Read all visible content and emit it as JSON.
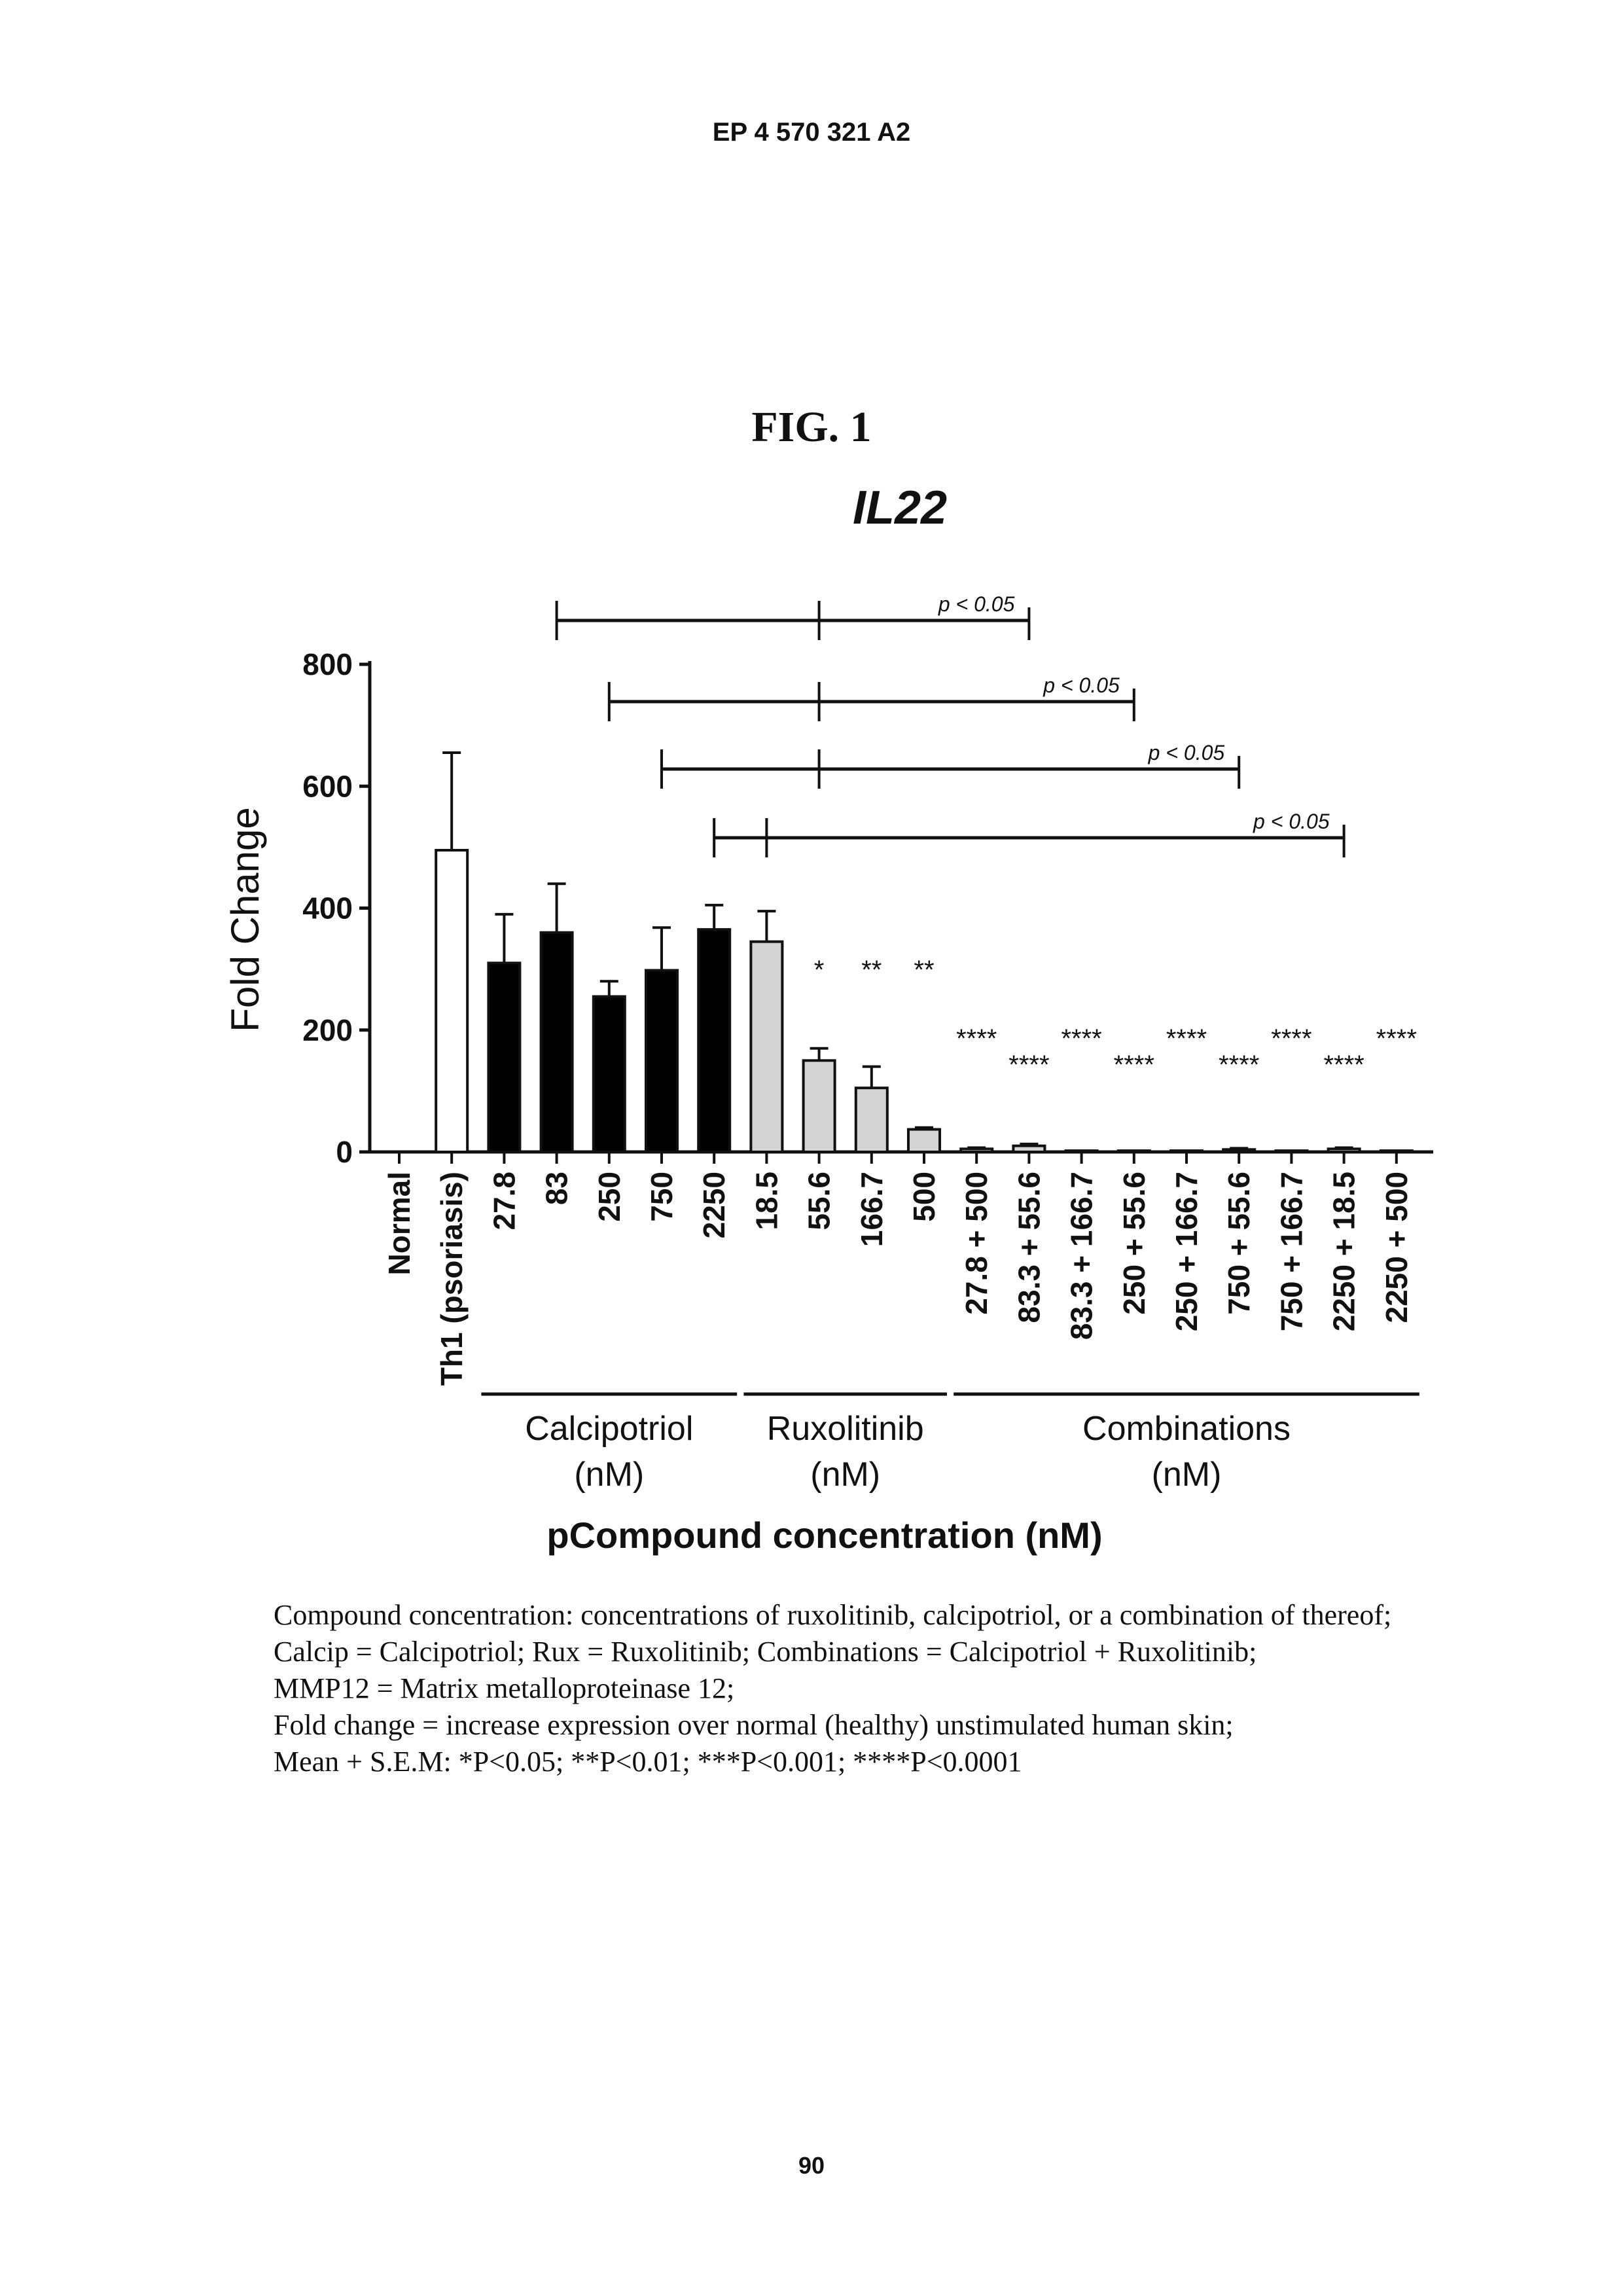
{
  "header": {
    "doc_number": "EP 4 570 321 A2"
  },
  "figure": {
    "label": "FIG. 1"
  },
  "chart_data": {
    "type": "bar",
    "title": "IL22",
    "ylabel": "Fold Change",
    "xlabel": "pCompound concentration (nM)",
    "ylim": [
      0,
      800
    ],
    "yticks": [
      0,
      200,
      400,
      600,
      800
    ],
    "grid": false,
    "categories": [
      "Normal",
      "Th1 (psoriasis)",
      "27.8",
      "83",
      "250",
      "750",
      "2250",
      "18.5",
      "55.6",
      "166.7",
      "500",
      "27.8 + 500",
      "83.3 + 55.6",
      "83.3 + 166.7",
      "250 + 55.6",
      "250 + 166.7",
      "750 + 55.6",
      "750 + 166.7",
      "2250 + 18.5",
      "2250 + 500"
    ],
    "values": [
      0,
      495,
      310,
      360,
      255,
      298,
      365,
      345,
      150,
      105,
      37,
      5,
      10,
      2,
      2,
      2,
      4,
      2,
      5,
      2
    ],
    "errors": [
      0,
      160,
      80,
      80,
      25,
      70,
      40,
      50,
      20,
      35,
      3,
      2,
      3,
      0,
      0,
      0,
      2,
      0,
      2,
      0
    ],
    "groups": [
      "control",
      "control",
      "calcipotriol",
      "calcipotriol",
      "calcipotriol",
      "calcipotriol",
      "calcipotriol",
      "ruxolitinib",
      "ruxolitinib",
      "ruxolitinib",
      "ruxolitinib",
      "combination",
      "combination",
      "combination",
      "combination",
      "combination",
      "combination",
      "combination",
      "combination",
      "combination"
    ],
    "fills": {
      "control": "#ffffff",
      "calcipotriol": "#000000",
      "ruxolitinib": "#d4d4d4",
      "combination": "#d4d4d4"
    },
    "significance": [
      "",
      "",
      "",
      "",
      "",
      "",
      "",
      "",
      "*",
      "**",
      "**",
      "****",
      "****",
      "****",
      "****",
      "****",
      "****",
      "****",
      "****",
      "****"
    ],
    "group_labels": [
      {
        "name": "Calcipotriol",
        "unit": "(nM)"
      },
      {
        "name": "Ruxolitinib",
        "unit": "(nM)"
      },
      {
        "name": "Combinations",
        "unit": "(nM)"
      }
    ],
    "comparisons": [
      {
        "label": "p < 0.05",
        "points": [
          3,
          8,
          12
        ]
      },
      {
        "label": "p < 0.05",
        "points": [
          4,
          8,
          14
        ]
      },
      {
        "label": "p < 0.05",
        "points": [
          5,
          8,
          16
        ]
      },
      {
        "label": "p < 0.05",
        "points": [
          6,
          7,
          18
        ]
      }
    ]
  },
  "caption": {
    "lines": [
      "Compound concentration: concentrations of ruxolitinib, calcipotriol, or a combination of thereof;",
      "Calcip = Calcipotriol; Rux = Ruxolitinib; Combinations = Calcipotriol + Ruxolitinib;",
      "MMP12 = Matrix metalloproteinase 12;",
      "Fold change = increase expression over normal (healthy) unstimulated human skin;",
      "Mean + S.E.M: *P<0.05; **P<0.01; ***P<0.001; ****P<0.0001"
    ]
  },
  "page": {
    "number": "90"
  }
}
